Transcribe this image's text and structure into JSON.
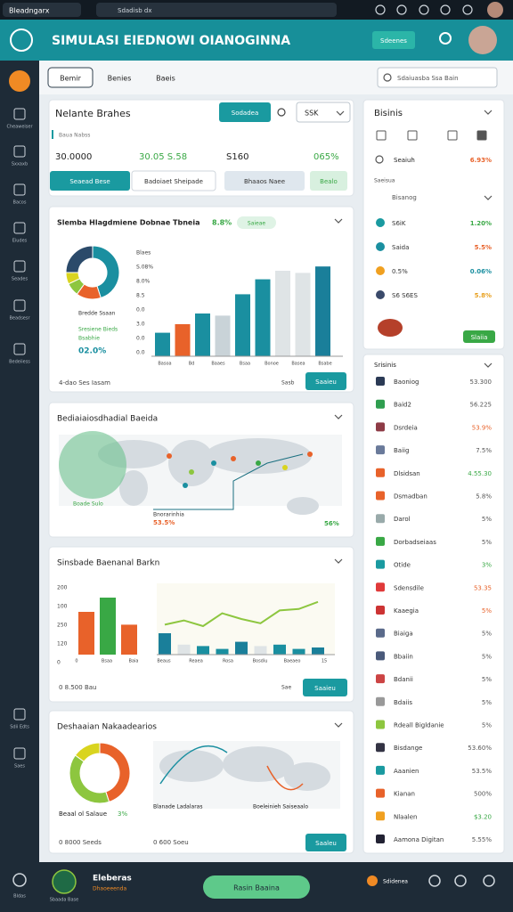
{
  "browser": {
    "tab": "Bleadngarx",
    "address": "Sdadisb dx"
  },
  "header": {
    "title": "SIMULASI EIEDNOWI OIANOGINNA",
    "button": "Sdeenes"
  },
  "sidebar": [
    "Cheaweiser",
    "Sxxaxb",
    "Bacos",
    "Eiudes",
    "Seades",
    "Beadsesr",
    "Bedeiiess",
    "Sdii Edts",
    "Saes"
  ],
  "tabs": [
    "Bemir",
    "Benies",
    "Baeis"
  ],
  "search": "Sdaiuasba Ssa Bain",
  "summary": {
    "title": "Nelante Brahes",
    "button": "Sodadea",
    "select": "SSK",
    "subtitle": "Baua Nabss",
    "stats": [
      "30.0000",
      "30.05 S.58",
      "S160",
      "065%"
    ],
    "actions": [
      "Seaead Bese",
      "Badoiaet Sheipade",
      "Bhaaos Naee",
      "Bealo"
    ]
  },
  "overview": {
    "title": "Slemba Hlagdmiene Dobnae Tbneia",
    "badge": "8.8%",
    "chip": "Saieae",
    "donut": {
      "values": [
        45,
        15,
        8,
        7,
        25
      ],
      "colors": [
        "#1a8fa0",
        "#e8622a",
        "#8dc63f",
        "#d9d41f",
        "#2b4a6a"
      ]
    },
    "donut_labels": [
      "Bredde Ssaan",
      "Sresiene Bieds",
      "Bsabhie",
      "02.0%"
    ],
    "ylabels": [
      "Blaes",
      "S.08%",
      "8.0%",
      "8.5",
      "0.0",
      "3.0",
      "0.0",
      "0.0"
    ],
    "bars": {
      "values": [
        22,
        30,
        40,
        38,
        58,
        72,
        80,
        78,
        84
      ],
      "colors": [
        "#1a8fa0",
        "#e8622a",
        "#1a8fa0",
        "#c9d3d8",
        "#1a8fa0",
        "#1a8fa0",
        "#dfe4e6",
        "#dfe4e6",
        "#1a7f9a"
      ]
    },
    "xlabels": [
      "Basoa",
      "Bd",
      "Baaes",
      "Bsaa",
      "Bonoe",
      "Basea",
      "Bsabe"
    ],
    "footer": "4-dao Ses Iasam",
    "link": "Sasb",
    "button": "Saaieu"
  },
  "map": {
    "title": "Bediaiaiosdhadial Baeida",
    "labels": [
      "Boade Sulo",
      "Bnorarinhia"
    ],
    "left_value": "53.5%",
    "right_value": "56%"
  },
  "trend": {
    "title": "Sinsbade Baenanal Barkn",
    "ylabels": [
      "200",
      "100",
      "250",
      "120",
      "0"
    ],
    "bars": {
      "values": [
        60,
        80,
        42
      ],
      "colors": [
        "#e8622a",
        "#39a845",
        "#e8622a"
      ]
    },
    "bar_xlabels": [
      "0",
      "Bsaa",
      "Baia"
    ],
    "combo_bars": [
      30,
      14,
      12,
      8,
      18,
      12,
      14,
      8,
      10
    ],
    "combo_line": [
      42,
      48,
      40,
      58,
      50,
      44,
      62,
      64,
      74
    ],
    "combo_xlabels": [
      "Beaus",
      "Reaea",
      "Rosa",
      "Bosdiu",
      "Baeaeo",
      "15"
    ],
    "footer": "0 8.500 Bau",
    "link": "Sae",
    "button": "Saaieu"
  },
  "distribution": {
    "title": "Deshaaian Nakaadearios",
    "donut": {
      "values": [
        45,
        40,
        15
      ],
      "colors": [
        "#e8622a",
        "#8dc63f",
        "#d9d41f"
      ]
    },
    "labels": [
      "Beaal ol Salaue",
      "3%",
      "Blanade Ladalaras",
      "Boeleinieh Saiseaalo"
    ],
    "footers": [
      "0 8000 Seeds",
      "0 600 Soeu"
    ],
    "button": "Saaleu"
  },
  "side_top": {
    "title": "Bisinis",
    "row": {
      "label": "Seaiuh",
      "value": "6.93%"
    },
    "section": "Saeisua",
    "dropdown": "Bisanog",
    "rows": [
      {
        "label": "S6iK",
        "value": "1.20%",
        "value_color": "#39a845",
        "icon_color": "#1a9aa0"
      },
      {
        "label": "Saida",
        "value": "5.5%",
        "value_color": "#e8622a",
        "icon_color": "#1a8fa0"
      },
      {
        "label": "0.5%",
        "value": "0.06%",
        "value_color": "#1a8fa0",
        "icon_color": "#f0a020"
      },
      {
        "label": "S6 S6ES",
        "value": "5.8%",
        "value_color": "#e8a020",
        "icon_color": "#3a4a6a"
      }
    ],
    "button": "Slaiia"
  },
  "side_list": {
    "title": "Srisinis",
    "rows": [
      {
        "label": "Baoniog",
        "value": "53.300",
        "value_color": "#555",
        "icon_color": "#2b3a55"
      },
      {
        "label": "Baid2",
        "value": "56.225",
        "value_color": "#555",
        "icon_color": "#2f9e4f"
      },
      {
        "label": "Dsrdeia",
        "value": "53.9%",
        "value_color": "#e8622a",
        "icon_color": "#8e3b46"
      },
      {
        "label": "Baiig",
        "value": "7.5%",
        "value_color": "#555",
        "icon_color": "#6a7a9a"
      },
      {
        "label": "Dlsidsan",
        "value": "4.55.30",
        "value_color": "#39a845",
        "icon_color": "#e8622a"
      },
      {
        "label": "Dsmadban",
        "value": "5.8%",
        "value_color": "#555",
        "icon_color": "#e8622a"
      },
      {
        "label": "Darol",
        "value": "5%",
        "value_color": "#555",
        "icon_color": "#99aaaa"
      },
      {
        "label": "Dorbadseiaas",
        "value": "5%",
        "value_color": "#555",
        "icon_color": "#39a845"
      },
      {
        "label": "Otide",
        "value": "3%",
        "value_color": "#39a845",
        "icon_color": "#1a9aa0"
      },
      {
        "label": "Sdensdile",
        "value": "53.35",
        "value_color": "#e8622a",
        "icon_color": "#e03a3a"
      },
      {
        "label": "Kaaegia",
        "value": "5%",
        "value_color": "#e8622a",
        "icon_color": "#cc3333"
      },
      {
        "label": "Biaiga",
        "value": "5%",
        "value_color": "#555",
        "icon_color": "#5a6a8a"
      },
      {
        "label": "Bbaiin",
        "value": "5%",
        "value_color": "#555",
        "icon_color": "#4a5a7a"
      },
      {
        "label": "Bdanii",
        "value": "5%",
        "value_color": "#555",
        "icon_color": "#cc4444"
      },
      {
        "label": "Bdaiis",
        "value": "5%",
        "value_color": "#555",
        "icon_color": "#999999"
      },
      {
        "label": "Rdeall Bigldanie",
        "value": "5%",
        "value_color": "#555",
        "icon_color": "#8dc63f"
      },
      {
        "label": "Bisdange",
        "value": "53.60%",
        "value_color": "#555",
        "icon_color": "#333344"
      },
      {
        "label": "Aaanien",
        "value": "53.5%",
        "value_color": "#555",
        "icon_color": "#1a9aa0"
      },
      {
        "label": "Kianan",
        "value": "500%",
        "value_color": "#555",
        "icon_color": "#e8622a"
      },
      {
        "label": "Nlaalen",
        "value": "$3.20",
        "value_color": "#39a845",
        "icon_color": "#f0a020"
      },
      {
        "label": "Aamona Digitan",
        "value": "5.55%",
        "value_color": "#555",
        "icon_color": "#222233"
      }
    ]
  },
  "footer": {
    "left_label": "Bldas",
    "logo_label": "Sbaada Base",
    "name": "Eleberas",
    "role": "Dhaoeeenda",
    "button": "Rasin Baaina",
    "right_label": "Sdidenea"
  }
}
